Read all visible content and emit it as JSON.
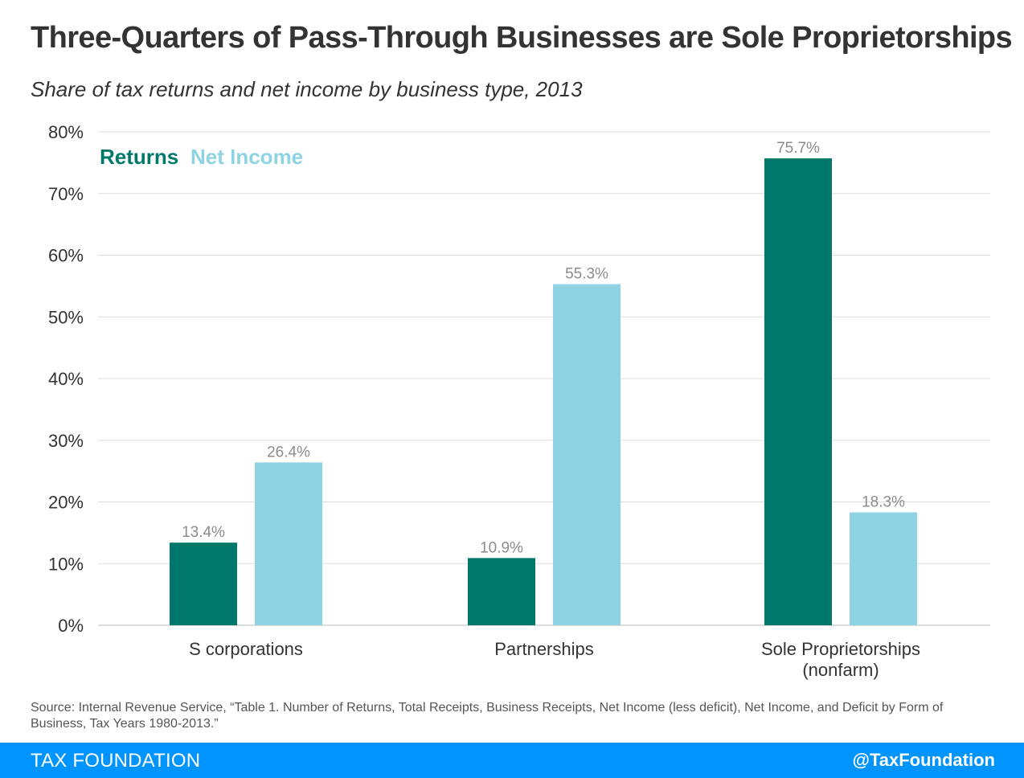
{
  "title": "Three-Quarters of Pass-Through Businesses are Sole Proprietorships",
  "subtitle": "Share of tax returns and net income by business type, 2013",
  "source": "Source: Internal Revenue Service, “Table 1. Number of Returns, Total Receipts, Business Receipts, Net Income (less deficit), Net Income, and Deficit by Form of Business, Tax Years 1980-2013.”",
  "footer": {
    "brand": "TAX FOUNDATION",
    "handle": "@TaxFoundation"
  },
  "colors": {
    "returns": "#00796b",
    "net_income": "#8dd3e3",
    "grid": "#dddddd",
    "axis_text": "#333333",
    "label_text": "#8c8c8c"
  },
  "chart_data": {
    "type": "bar",
    "categories": [
      [
        "S corporations"
      ],
      [
        "Partnerships"
      ],
      [
        "Sole Proprietorships",
        "(nonfarm)"
      ]
    ],
    "series": [
      {
        "name": "Returns",
        "values": [
          13.4,
          10.9,
          75.7
        ],
        "labels": [
          "13.4%",
          "10.9%",
          "75.7%"
        ]
      },
      {
        "name": "Net Income",
        "values": [
          26.4,
          55.3,
          18.3
        ],
        "labels": [
          "26.4%",
          "55.3%",
          "18.3%"
        ]
      }
    ],
    "ylim": [
      0,
      80
    ],
    "yticks": [
      0,
      10,
      20,
      30,
      40,
      50,
      60,
      70,
      80
    ],
    "ytick_labels": [
      "0%",
      "10%",
      "20%",
      "30%",
      "40%",
      "50%",
      "60%",
      "70%",
      "80%"
    ],
    "xlabel": "",
    "ylabel": "",
    "grid": true,
    "legend_position": "top-left"
  }
}
